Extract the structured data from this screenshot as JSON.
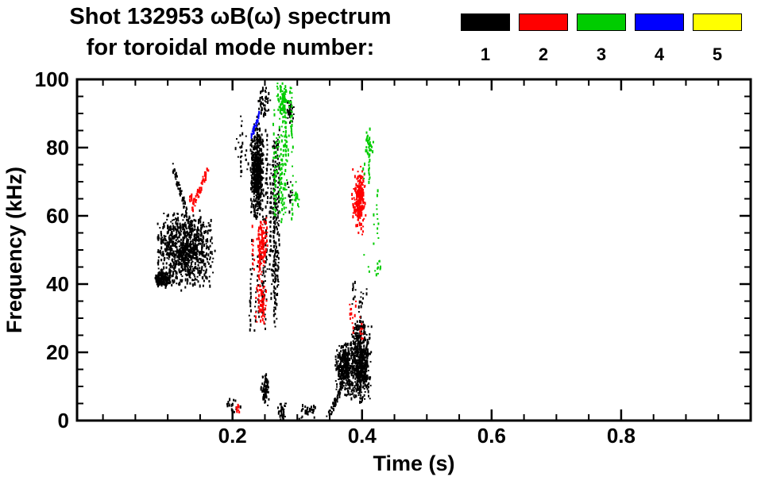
{
  "chart_data": {
    "type": "scatter",
    "title": "Shot 132953 ωB(ω) spectrum",
    "subtitle": "for toroidal mode number:",
    "xlabel": "Time (s)",
    "ylabel": "Frequency (kHz)",
    "xlim": [
      -0.04,
      1.0
    ],
    "ylim": [
      0,
      100
    ],
    "xticks": [
      0.2,
      0.4,
      0.6,
      0.8
    ],
    "yticks": [
      0,
      20,
      40,
      60,
      80,
      100
    ],
    "x_minor_step": 0.05,
    "y_minor_step": 5,
    "grid": false,
    "legend_position": "top-right",
    "legend": [
      {
        "label": "1",
        "color": "#000000"
      },
      {
        "label": "2",
        "color": "#ff0000"
      },
      {
        "label": "3",
        "color": "#00cc00"
      },
      {
        "label": "4",
        "color": "#0000ff"
      },
      {
        "label": "5",
        "color": "#ffff00"
      }
    ],
    "series": [
      {
        "name": "1",
        "color": "#000000",
        "clusters": [
          {
            "type": "blob",
            "x": [
              0.078,
              0.175
            ],
            "y": [
              38,
              62
            ],
            "n": 900
          },
          {
            "type": "blob",
            "x": [
              0.08,
              0.105
            ],
            "y": [
              39,
              44
            ],
            "n": 150
          },
          {
            "type": "diag",
            "x": [
              0.108,
              0.138
            ],
            "y": [
              74,
              56
            ],
            "n": 70,
            "jitter": 1.5
          },
          {
            "type": "vstreaks",
            "x": [
              0.205,
              0.224
            ],
            "y": [
              70,
              92
            ],
            "streaks": 10,
            "len": [
              3,
              10
            ]
          },
          {
            "type": "blob",
            "x": [
              0.227,
              0.249
            ],
            "y": [
              58,
              88
            ],
            "n": 550
          },
          {
            "type": "blob",
            "x": [
              0.237,
              0.26
            ],
            "y": [
              88,
              99
            ],
            "n": 50
          },
          {
            "type": "vstreaks",
            "x": [
              0.25,
              0.272
            ],
            "y": [
              25,
              88
            ],
            "streaks": 22,
            "len": [
              12,
              45
            ]
          },
          {
            "type": "vstreaks",
            "x": [
              0.226,
              0.25
            ],
            "y": [
              26,
              56
            ],
            "streaks": 14,
            "len": [
              4,
              14
            ]
          },
          {
            "type": "blob",
            "x": [
              0.282,
              0.296
            ],
            "y": [
              86,
              95
            ],
            "n": 35
          },
          {
            "type": "blob",
            "x": [
              0.284,
              0.294
            ],
            "y": [
              60,
              72
            ],
            "n": 12
          },
          {
            "type": "blob",
            "x": [
              0.244,
              0.257
            ],
            "y": [
              3,
              14
            ],
            "n": 70
          },
          {
            "type": "blob",
            "x": [
              0.27,
              0.284
            ],
            "y": [
              0,
              6
            ],
            "n": 35
          },
          {
            "type": "blob",
            "x": [
              0.3,
              0.33
            ],
            "y": [
              0,
              5
            ],
            "n": 35
          },
          {
            "type": "diag",
            "x": [
              0.345,
              0.368
            ],
            "y": [
              0,
              9
            ],
            "n": 60,
            "jitter": 1.2
          },
          {
            "type": "blob",
            "x": [
              0.358,
              0.392
            ],
            "y": [
              7,
              24
            ],
            "n": 350
          },
          {
            "type": "blob",
            "x": [
              0.382,
              0.415
            ],
            "y": [
              4,
              30
            ],
            "n": 500
          },
          {
            "type": "vstreaks",
            "x": [
              0.384,
              0.412
            ],
            "y": [
              27,
              42
            ],
            "streaks": 12,
            "len": [
              2,
              8
            ]
          },
          {
            "type": "blob",
            "x": [
              0.19,
              0.213
            ],
            "y": [
              2,
              7
            ],
            "n": 15
          }
        ]
      },
      {
        "name": "2",
        "color": "#ff0000",
        "clusters": [
          {
            "type": "diag",
            "x": [
              0.137,
              0.163
            ],
            "y": [
              62,
              74
            ],
            "n": 55,
            "jitter": 1.5
          },
          {
            "type": "blob",
            "x": [
              0.133,
              0.142
            ],
            "y": [
              63,
              67
            ],
            "n": 10
          },
          {
            "type": "vstreaks",
            "x": [
              0.228,
              0.254
            ],
            "y": [
              28,
              62
            ],
            "streaks": 18,
            "len": [
              3,
              14
            ]
          },
          {
            "type": "blob",
            "x": [
              0.237,
              0.254
            ],
            "y": [
              44,
              60
            ],
            "n": 90
          },
          {
            "type": "blob",
            "x": [
              0.24,
              0.252
            ],
            "y": [
              28,
              40
            ],
            "n": 45
          },
          {
            "type": "blob",
            "x": [
              0.384,
              0.407
            ],
            "y": [
              54,
              75
            ],
            "n": 160
          },
          {
            "type": "blob",
            "x": [
              0.39,
              0.404
            ],
            "y": [
              60,
              72
            ],
            "n": 80
          },
          {
            "type": "vstreaks",
            "x": [
              0.378,
              0.404
            ],
            "y": [
              24,
              36
            ],
            "streaks": 8,
            "len": [
              2,
              6
            ]
          },
          {
            "type": "blob",
            "x": [
              0.204,
              0.214
            ],
            "y": [
              1,
              6
            ],
            "n": 8
          }
        ]
      },
      {
        "name": "3",
        "color": "#00cc00",
        "clusters": [
          {
            "type": "vstreaks",
            "x": [
              0.262,
              0.293
            ],
            "y": [
              55,
              100
            ],
            "streaks": 20,
            "len": [
              6,
              28
            ]
          },
          {
            "type": "blob",
            "x": [
              0.268,
              0.29
            ],
            "y": [
              88,
              100
            ],
            "n": 70
          },
          {
            "type": "blob",
            "x": [
              0.295,
              0.303
            ],
            "y": [
              60,
              71
            ],
            "n": 18
          },
          {
            "type": "vstreaks",
            "x": [
              0.398,
              0.427
            ],
            "y": [
              38,
              88
            ],
            "streaks": 14,
            "len": [
              2,
              8
            ]
          },
          {
            "type": "blob",
            "x": [
              0.404,
              0.416
            ],
            "y": [
              76,
              86
            ],
            "n": 30
          },
          {
            "type": "blob",
            "x": [
              0.42,
              0.43
            ],
            "y": [
              42,
              48
            ],
            "n": 10
          }
        ]
      },
      {
        "name": "4",
        "color": "#0000ff",
        "clusters": [
          {
            "type": "diag",
            "x": [
              0.229,
              0.242
            ],
            "y": [
              83,
              90
            ],
            "n": 30,
            "jitter": 1.0
          }
        ]
      },
      {
        "name": "5",
        "color": "#ffff00",
        "clusters": []
      }
    ]
  }
}
